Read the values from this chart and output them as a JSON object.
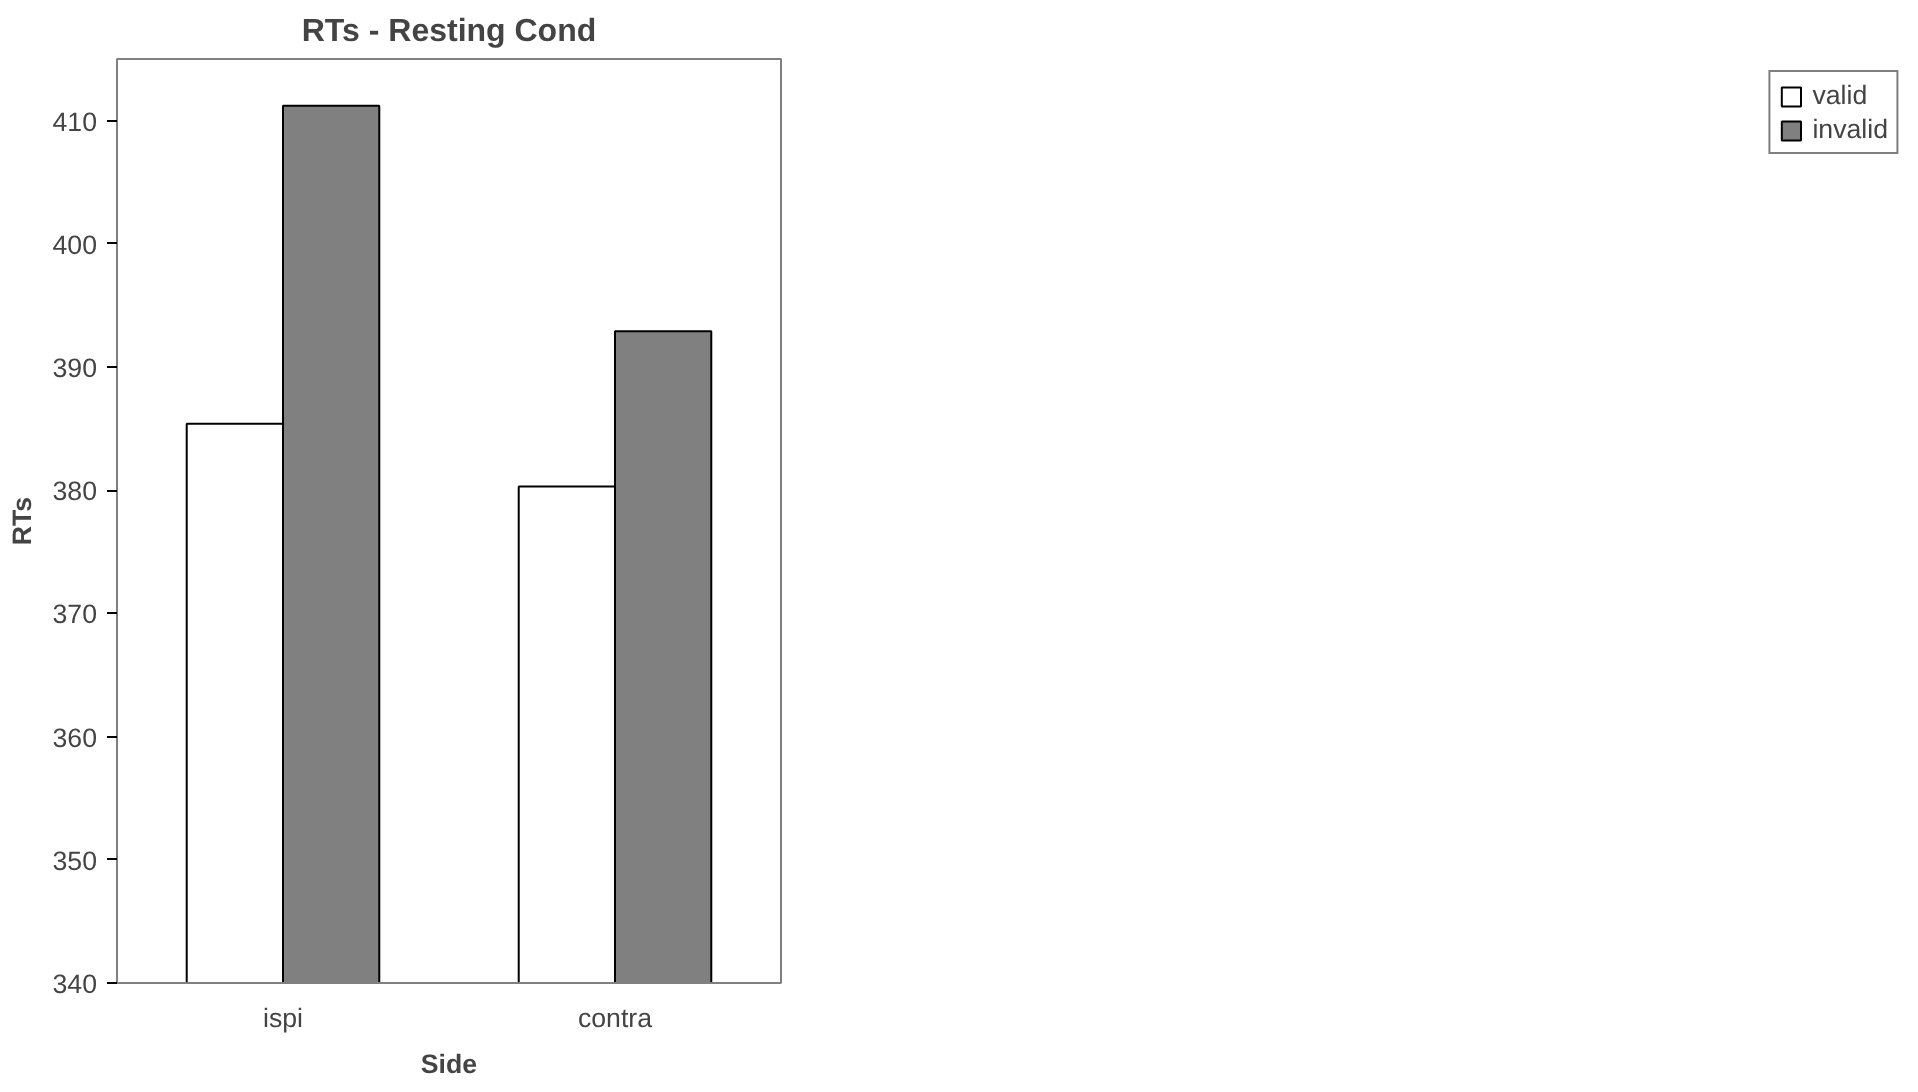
{
  "chart_data": {
    "type": "bar",
    "title": "RTs - Resting Cond",
    "xlabel": "Side",
    "ylabel": "RTs",
    "categories": [
      "ispi",
      "contra"
    ],
    "series": [
      {
        "name": "valid",
        "color": "#ffffff",
        "values": [
          385.4,
          380.3
        ]
      },
      {
        "name": "invalid",
        "color": "#808080",
        "values": [
          411.2,
          392.9
        ]
      }
    ],
    "ylim": [
      340,
      415
    ],
    "yticks": [
      340,
      350,
      360,
      370,
      380,
      390,
      400,
      410
    ],
    "grid": false,
    "legend": "right"
  }
}
